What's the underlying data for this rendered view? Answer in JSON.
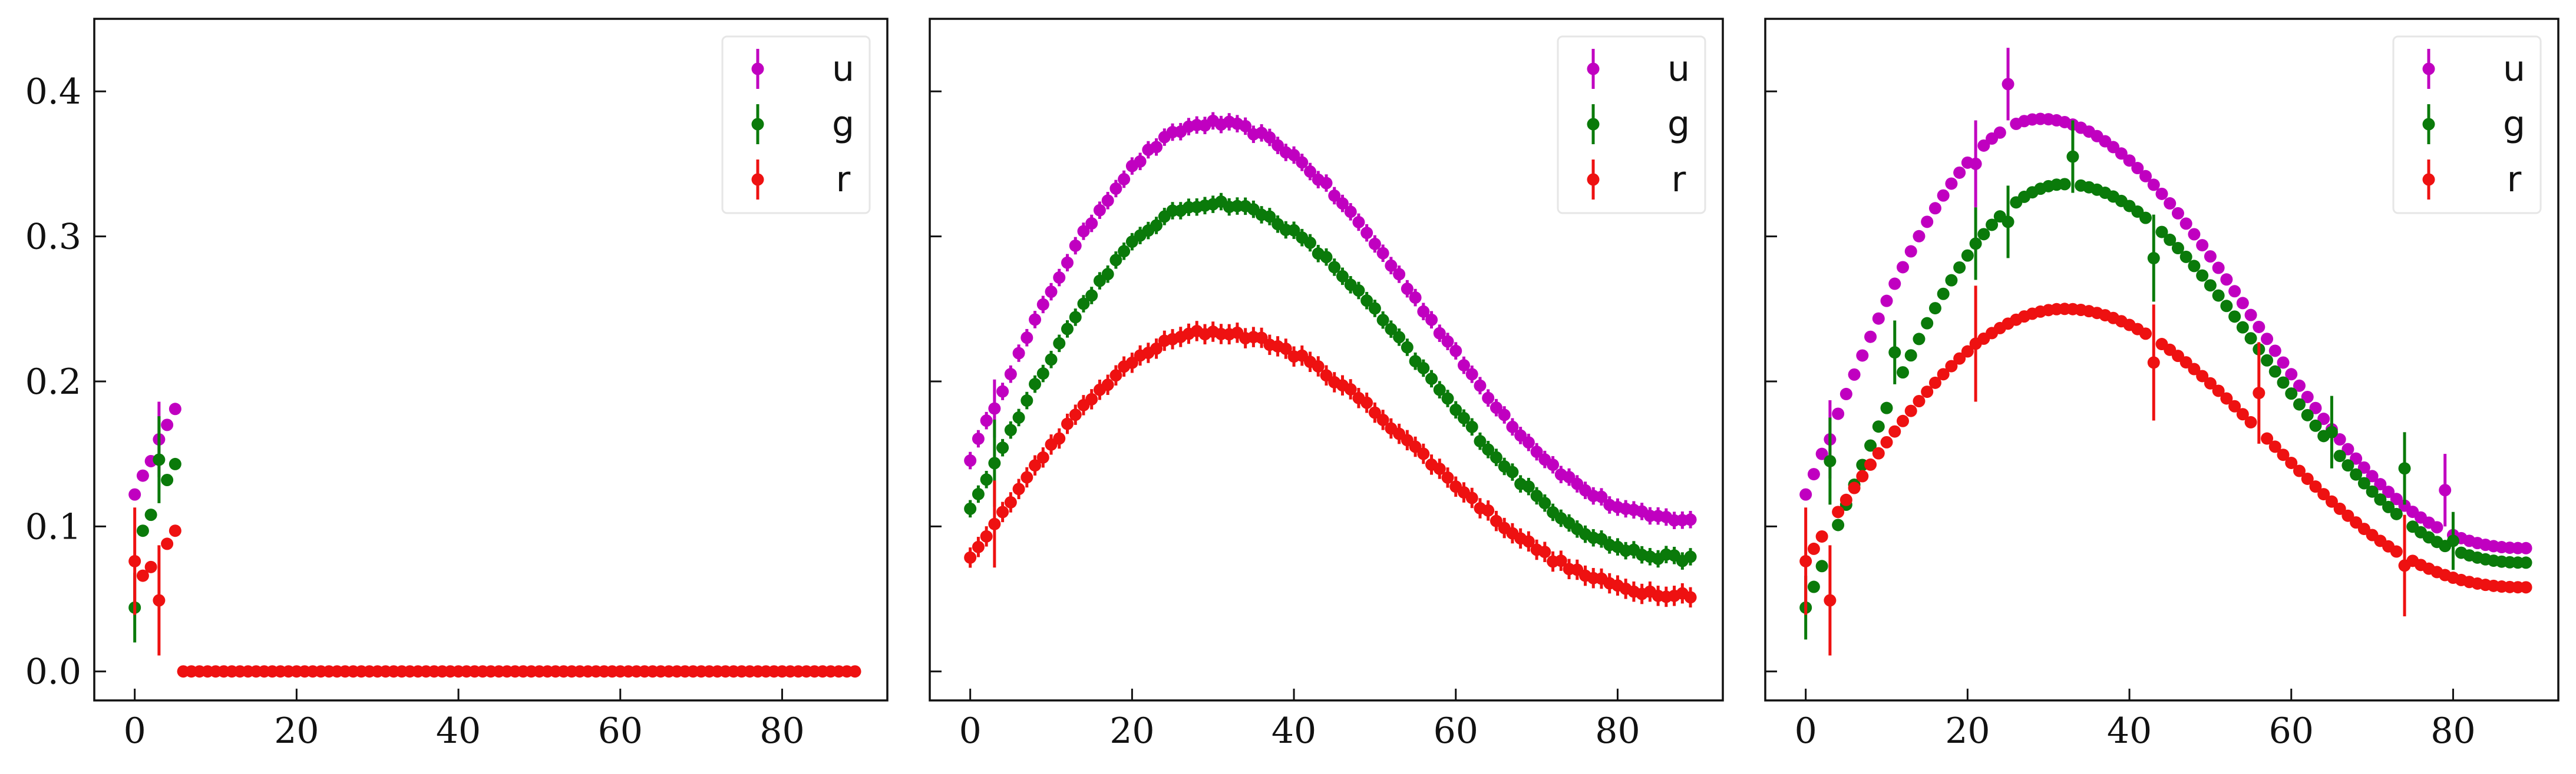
{
  "figure": {
    "colors": {
      "u": "#c000c0",
      "g": "#0a7a0a",
      "r": "#ee1111",
      "legend_border": "#e6e6e6"
    }
  },
  "chart_data": [
    {
      "type": "scatter",
      "panel": "left",
      "xlim": [
        -5,
        93
      ],
      "ylim": [
        -0.02,
        0.45
      ],
      "xticks": [
        "0",
        "20",
        "40",
        "60",
        "80"
      ],
      "yticks": [
        "0.0",
        "0.1",
        "0.2",
        "0.3",
        "0.4"
      ],
      "show_yticklabels": true,
      "legend_placement": "top-right",
      "legend": [
        "u",
        "g",
        "r"
      ],
      "series": [
        {
          "name": "u",
          "color": "#c000c0",
          "x": [
            0,
            1,
            2,
            3,
            4,
            5
          ],
          "y": [
            0.122,
            0.135,
            0.145,
            0.16,
            0.17,
            0.181
          ],
          "err": [
            0,
            0,
            0,
            0.026,
            0,
            0
          ]
        },
        {
          "name": "g",
          "color": "#0a7a0a",
          "x": [
            0,
            1,
            2,
            3,
            4,
            5
          ],
          "y": [
            0.044,
            0.097,
            0.108,
            0.146,
            0.132,
            0.143
          ],
          "err": [
            0.024,
            0,
            0,
            0.03,
            0,
            0
          ]
        },
        {
          "name": "r",
          "color": "#ee1111",
          "x": [
            0,
            1,
            2,
            3,
            4,
            5
          ],
          "y": [
            0.076,
            0.066,
            0.072,
            0.049,
            0.088,
            0.097
          ],
          "err": [
            0.037,
            0,
            0,
            0.038,
            0,
            0
          ]
        },
        {
          "name": "r",
          "color": "#ee1111",
          "x_range": [
            6,
            89,
            1
          ],
          "y_const": 0.0,
          "err": 0
        }
      ]
    },
    {
      "type": "scatter",
      "panel": "middle",
      "xlim": [
        -5,
        93
      ],
      "ylim": [
        -0.02,
        0.45
      ],
      "xticks": [
        "0",
        "20",
        "40",
        "60",
        "80"
      ],
      "yticks": [
        "0.0",
        "0.1",
        "0.2",
        "0.3",
        "0.4"
      ],
      "show_yticklabels": false,
      "legend_placement": "top-right",
      "legend": [
        "u",
        "g",
        "r"
      ],
      "series": [
        {
          "name": "u",
          "color": "#c000c0",
          "x_range": [
            0,
            89,
            1
          ],
          "peak_x": 30,
          "peak_y": 0.378,
          "start_y": 0.147,
          "end_y": 0.105,
          "jitter": 0.004,
          "err": 0.006,
          "err_at_3": 0.02
        },
        {
          "name": "g",
          "color": "#0a7a0a",
          "x_range": [
            0,
            89,
            1
          ],
          "peak_x": 30,
          "peak_y": 0.323,
          "start_y": 0.111,
          "end_y": 0.078,
          "jitter": 0.004,
          "err": 0.006,
          "err_at_3": 0.03
        },
        {
          "name": "r",
          "color": "#ee1111",
          "x_range": [
            0,
            89,
            1
          ],
          "peak_x": 30,
          "peak_y": 0.234,
          "start_y": 0.077,
          "end_y": 0.053,
          "jitter": 0.004,
          "err": 0.007,
          "err_at_3": 0.03
        }
      ]
    },
    {
      "type": "scatter",
      "panel": "right",
      "xlim": [
        -5,
        93
      ],
      "ylim": [
        -0.02,
        0.45
      ],
      "xticks": [
        "0",
        "20",
        "40",
        "60",
        "80"
      ],
      "yticks": [
        "0.0",
        "0.1",
        "0.2",
        "0.3",
        "0.4"
      ],
      "show_yticklabels": false,
      "legend_placement": "top-right",
      "legend": [
        "u",
        "g",
        "r"
      ],
      "series": [
        {
          "name": "u",
          "color": "#c000c0",
          "x_range": [
            0,
            89,
            1
          ],
          "peak_x": 29,
          "peak_y": 0.381,
          "start_y": 0.122,
          "end_y": 0.085,
          "jitter": 0,
          "err": 0,
          "outliers": [
            {
              "x": 3,
              "y": 0.16,
              "err": 0.027
            },
            {
              "x": 21,
              "y": 0.35,
              "err": 0.03
            },
            {
              "x": 25,
              "y": 0.405,
              "err": 0.025
            },
            {
              "x": 79,
              "y": 0.125,
              "err": 0.025
            }
          ]
        },
        {
          "name": "g",
          "color": "#0a7a0a",
          "x_range": [
            0,
            89,
            1
          ],
          "peak_x": 32,
          "peak_y": 0.336,
          "start_y": 0.044,
          "end_y": 0.075,
          "jitter": 0,
          "err": 0,
          "outliers": [
            {
              "x": 0,
              "y": 0.044,
              "err": 0.022
            },
            {
              "x": 3,
              "y": 0.145,
              "err": 0.03
            },
            {
              "x": 11,
              "y": 0.22,
              "err": 0.022
            },
            {
              "x": 21,
              "y": 0.295,
              "err": 0.025
            },
            {
              "x": 25,
              "y": 0.31,
              "err": 0.025
            },
            {
              "x": 33,
              "y": 0.355,
              "err": 0.025
            },
            {
              "x": 43,
              "y": 0.285,
              "err": 0.03
            },
            {
              "x": 65,
              "y": 0.165,
              "err": 0.025
            },
            {
              "x": 74,
              "y": 0.14,
              "err": 0.025
            },
            {
              "x": 80,
              "y": 0.09,
              "err": 0.02
            }
          ]
        },
        {
          "name": "r",
          "color": "#ee1111",
          "x_range": [
            0,
            89,
            1
          ],
          "peak_x": 32,
          "peak_y": 0.25,
          "start_y": 0.076,
          "end_y": 0.058,
          "jitter": 0,
          "err": 0,
          "outliers": [
            {
              "x": 0,
              "y": 0.076,
              "err": 0.037
            },
            {
              "x": 3,
              "y": 0.049,
              "err": 0.038
            },
            {
              "x": 21,
              "y": 0.226,
              "err": 0.04
            },
            {
              "x": 43,
              "y": 0.213,
              "err": 0.04
            },
            {
              "x": 56,
              "y": 0.192,
              "err": 0.035
            },
            {
              "x": 74,
              "y": 0.073,
              "err": 0.035
            }
          ]
        }
      ]
    }
  ]
}
